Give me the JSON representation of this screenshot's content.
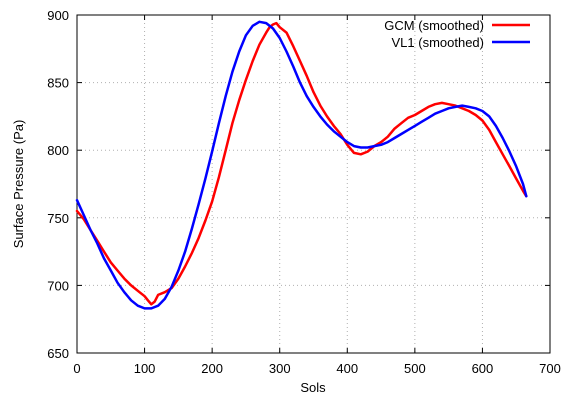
{
  "chart_data": {
    "type": "line",
    "xlabel": "Sols",
    "ylabel": "Surface Pressure (Pa)",
    "xlim": [
      0,
      700
    ],
    "ylim": [
      650,
      900
    ],
    "xticks": [
      0,
      100,
      200,
      300,
      400,
      500,
      600,
      700
    ],
    "yticks": [
      650,
      700,
      750,
      800,
      850,
      900
    ],
    "grid": true,
    "legend_position": "top-right",
    "series": [
      {
        "name": "GCM (smoothed)",
        "color": "#ff0000",
        "x": [
          0,
          10,
          20,
          30,
          40,
          50,
          60,
          70,
          80,
          90,
          100,
          105,
          110,
          115,
          120,
          130,
          140,
          150,
          160,
          170,
          180,
          190,
          200,
          210,
          220,
          230,
          240,
          250,
          260,
          270,
          280,
          285,
          290,
          295,
          300,
          310,
          320,
          330,
          340,
          350,
          360,
          370,
          380,
          390,
          400,
          410,
          420,
          430,
          440,
          450,
          460,
          470,
          480,
          490,
          500,
          510,
          520,
          530,
          540,
          550,
          560,
          570,
          580,
          590,
          600,
          610,
          620,
          630,
          640,
          650,
          660,
          665
        ],
        "y": [
          755,
          749,
          741,
          733,
          725,
          717,
          711,
          705,
          700,
          696,
          692,
          689,
          686,
          688,
          693,
          695,
          698,
          705,
          714,
          724,
          735,
          748,
          762,
          780,
          800,
          820,
          837,
          852,
          866,
          878,
          887,
          891,
          893,
          894,
          891,
          887,
          877,
          866,
          855,
          843,
          833,
          825,
          818,
          812,
          804,
          798,
          797,
          799,
          803,
          806,
          810,
          816,
          820,
          824,
          826,
          829,
          832,
          834,
          835,
          834,
          833,
          831,
          829,
          826,
          822,
          815,
          806,
          797,
          788,
          779,
          770,
          766
        ]
      },
      {
        "name": "VL1 (smoothed)",
        "color": "#0000ff",
        "x": [
          0,
          10,
          20,
          30,
          40,
          50,
          60,
          70,
          80,
          90,
          100,
          110,
          120,
          130,
          140,
          150,
          160,
          170,
          180,
          190,
          200,
          210,
          220,
          230,
          240,
          250,
          260,
          270,
          280,
          290,
          300,
          310,
          320,
          330,
          340,
          350,
          360,
          370,
          380,
          390,
          400,
          410,
          420,
          430,
          440,
          450,
          460,
          470,
          480,
          490,
          500,
          510,
          520,
          530,
          540,
          550,
          560,
          570,
          580,
          590,
          600,
          610,
          620,
          630,
          640,
          650,
          660,
          665
        ],
        "y": [
          763,
          752,
          741,
          731,
          720,
          711,
          702,
          695,
          689,
          685,
          683,
          683,
          685,
          690,
          699,
          711,
          725,
          742,
          760,
          779,
          799,
          820,
          840,
          858,
          873,
          885,
          892,
          895,
          894,
          890,
          883,
          873,
          862,
          850,
          840,
          832,
          825,
          819,
          814,
          810,
          806,
          803,
          802,
          802,
          803,
          804,
          806,
          809,
          812,
          815,
          818,
          821,
          824,
          827,
          829,
          831,
          832,
          833,
          832,
          831,
          829,
          825,
          818,
          809,
          799,
          788,
          775,
          766
        ]
      }
    ]
  }
}
